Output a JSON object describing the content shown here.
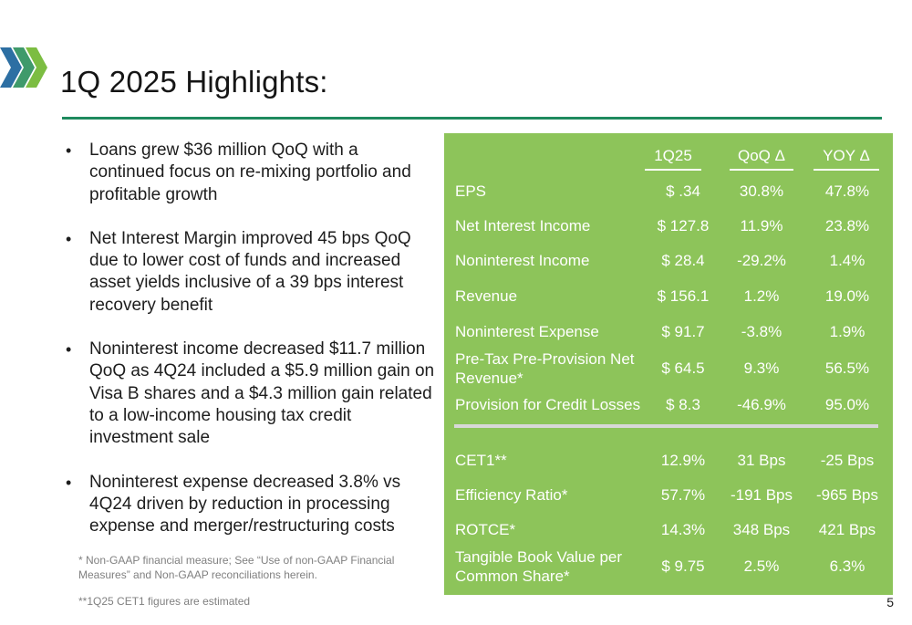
{
  "slide": {
    "title": "1Q 2025 Highlights:",
    "page_number": "5"
  },
  "bullets": [
    "Loans grew $36 million QoQ with a continued focus on re-mixing portfolio and profitable growth",
    "Net Interest Margin improved 45 bps QoQ due to lower cost of funds and increased asset yields inclusive of a 39 bps interest recovery benefit",
    "Noninterest income decreased $11.7 million QoQ as 4Q24 included a $5.9 million gain on Visa B shares and a $4.3 million gain related to a low-income housing tax credit investment sale",
    "Noninterest expense decreased 3.8% vs 4Q24 driven by reduction in processing expense and merger/restructuring costs"
  ],
  "footnotes": {
    "non_gaap": "* Non-GAAP financial measure; See “Use of non-GAAP Financial Measures” and Non-GAAP reconciliations herein.",
    "cet1": "**1Q25 CET1 figures are estimated"
  },
  "table": {
    "headers": [
      "1Q25",
      "QoQ Δ",
      "YOY Δ"
    ],
    "rows": [
      {
        "label": "EPS",
        "q": "$ .34",
        "qoq": "30.8%",
        "yoy": "47.8%"
      },
      {
        "label": "Net Interest Income",
        "q": "$ 127.8",
        "qoq": "11.9%",
        "yoy": "23.8%"
      },
      {
        "label": "Noninterest Income",
        "q": "$ 28.4",
        "qoq": "-29.2%",
        "yoy": "1.4%"
      },
      {
        "label": "Revenue",
        "q": "$ 156.1",
        "qoq": "1.2%",
        "yoy": "19.0%"
      },
      {
        "label": "Noninterest Expense",
        "q": "$ 91.7",
        "qoq": "-3.8%",
        "yoy": "1.9%"
      },
      {
        "label": "Pre-Tax Pre-Provision Net Revenue*",
        "q": "$ 64.5",
        "qoq": "9.3%",
        "yoy": "56.5%"
      },
      {
        "label": "Provision for Credit Losses",
        "q": "$ 8.3",
        "qoq": "-46.9%",
        "yoy": "95.0%"
      },
      {
        "label": "CET1**",
        "q": "12.9%",
        "qoq": "31 Bps",
        "yoy": "-25 Bps"
      },
      {
        "label": "Efficiency Ratio*",
        "q": "57.7%",
        "qoq": "-191 Bps",
        "yoy": "-965 Bps"
      },
      {
        "label": "ROTCE*",
        "q": "14.3%",
        "qoq": "348 Bps",
        "yoy": "421 Bps"
      },
      {
        "label": "Tangible Book Value per Common Share*",
        "q": "$ 9.75",
        "qoq": "2.5%",
        "yoy": "6.3%"
      }
    ]
  },
  "colors": {
    "panel_green": "#8dc45a",
    "rule_green": "#1e8a5e",
    "logo_blue": "#2d6fa3",
    "logo_green": "#7cbd42"
  }
}
